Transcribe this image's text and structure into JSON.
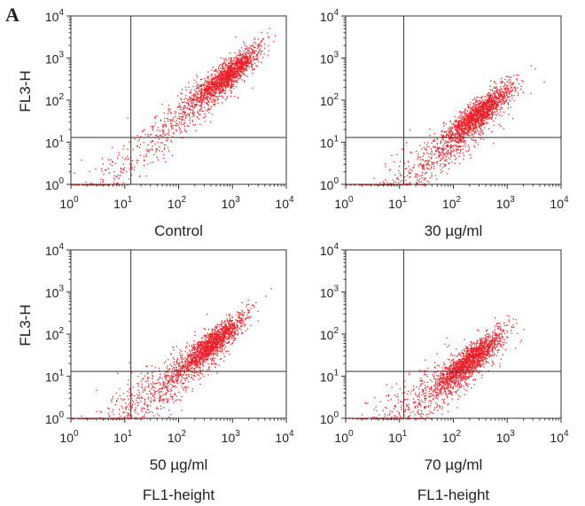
{
  "panel_label": "A",
  "chart_data": [
    {
      "type": "scatter",
      "panel": "Control",
      "xlabel": "Control",
      "ylabel": "FL3-H",
      "x_scale": "log",
      "y_scale": "log",
      "xlim": [
        1,
        10000
      ],
      "ylim": [
        1,
        10000
      ],
      "x_ticks": [
        {
          "base": "10",
          "exp": "0"
        },
        {
          "base": "10",
          "exp": "1"
        },
        {
          "base": "10",
          "exp": "2"
        },
        {
          "base": "10",
          "exp": "3"
        },
        {
          "base": "10",
          "exp": "4"
        }
      ],
      "y_ticks": [
        {
          "base": "10",
          "exp": "0"
        },
        {
          "base": "10",
          "exp": "1"
        },
        {
          "base": "10",
          "exp": "2"
        },
        {
          "base": "10",
          "exp": "3"
        },
        {
          "base": "10",
          "exp": "4"
        }
      ],
      "quadrant_gate": {
        "x": 13,
        "y": 13
      },
      "population_centers": [
        [
          800,
          400
        ],
        [
          200,
          80
        ],
        [
          5,
          1.2
        ]
      ],
      "point_color": "#e8202a"
    },
    {
      "type": "scatter",
      "panel": "30 µg/ml",
      "xlabel": "30 µg/ml",
      "ylabel": "",
      "x_scale": "log",
      "y_scale": "log",
      "xlim": [
        1,
        10000
      ],
      "ylim": [
        1,
        10000
      ],
      "x_ticks": [
        {
          "base": "10",
          "exp": "0"
        },
        {
          "base": "10",
          "exp": "1"
        },
        {
          "base": "10",
          "exp": "2"
        },
        {
          "base": "10",
          "exp": "3"
        },
        {
          "base": "10",
          "exp": "4"
        }
      ],
      "y_ticks": [
        {
          "base": "10",
          "exp": "0"
        },
        {
          "base": "10",
          "exp": "1"
        },
        {
          "base": "10",
          "exp": "2"
        },
        {
          "base": "10",
          "exp": "3"
        },
        {
          "base": "10",
          "exp": "4"
        }
      ],
      "quadrant_gate": {
        "x": 12,
        "y": 13
      },
      "population_centers": [
        [
          300,
          50
        ],
        [
          100,
          10
        ],
        [
          10,
          1.2
        ]
      ],
      "point_color": "#e8202a"
    },
    {
      "type": "scatter",
      "panel": "50 µg/ml",
      "xlabel": "50 µg/ml",
      "ylabel": "FL3-H",
      "xlabel2": "FL1-height",
      "x_scale": "log",
      "y_scale": "log",
      "xlim": [
        1,
        10000
      ],
      "ylim": [
        1,
        10000
      ],
      "x_ticks": [
        {
          "base": "10",
          "exp": "0"
        },
        {
          "base": "10",
          "exp": "1"
        },
        {
          "base": "10",
          "exp": "2"
        },
        {
          "base": "10",
          "exp": "3"
        },
        {
          "base": "10",
          "exp": "4"
        }
      ],
      "y_ticks": [
        {
          "base": "10",
          "exp": "0"
        },
        {
          "base": "10",
          "exp": "1"
        },
        {
          "base": "10",
          "exp": "2"
        },
        {
          "base": "10",
          "exp": "3"
        },
        {
          "base": "10",
          "exp": "4"
        }
      ],
      "quadrant_gate": {
        "x": 13,
        "y": 13
      },
      "population_centers": [
        [
          400,
          60
        ],
        [
          100,
          10
        ],
        [
          10,
          2
        ]
      ],
      "point_color": "#e8202a"
    },
    {
      "type": "scatter",
      "panel": "70 µg/ml",
      "xlabel": "70 µg/ml",
      "ylabel": "",
      "xlabel2": "FL1-height",
      "x_scale": "log",
      "y_scale": "log",
      "xlim": [
        1,
        10000
      ],
      "ylim": [
        1,
        10000
      ],
      "x_ticks": [
        {
          "base": "10",
          "exp": "0"
        },
        {
          "base": "10",
          "exp": "1"
        },
        {
          "base": "10",
          "exp": "2"
        },
        {
          "base": "10",
          "exp": "3"
        },
        {
          "base": "10",
          "exp": "4"
        }
      ],
      "y_ticks": [
        {
          "base": "10",
          "exp": "0"
        },
        {
          "base": "10",
          "exp": "1"
        },
        {
          "base": "10",
          "exp": "2"
        },
        {
          "base": "10",
          "exp": "3"
        },
        {
          "base": "10",
          "exp": "4"
        }
      ],
      "quadrant_gate": {
        "x": 12,
        "y": 13
      },
      "population_centers": [
        [
          200,
          25
        ],
        [
          100,
          8
        ],
        [
          12,
          2
        ]
      ],
      "point_color": "#e8202a"
    }
  ]
}
